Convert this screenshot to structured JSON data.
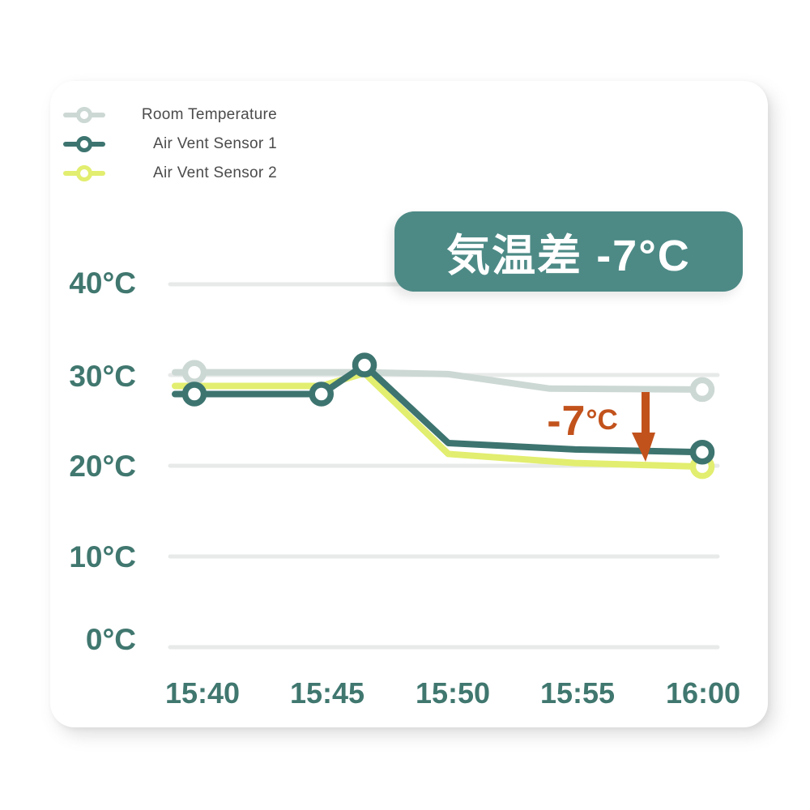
{
  "colors": {
    "room": "#ccd8d4",
    "sensor1": "#3d7470",
    "sensor2": "#e2ee6f",
    "axis_text": "#40776f",
    "grid": "#e7eae8",
    "banner_bg": "#4d8a86",
    "banner_text": "#ffffff",
    "annotation": "#c2521c",
    "card_bg": "#ffffff"
  },
  "legend": {
    "items": [
      {
        "label": "Room Temperature",
        "color": "#ccd8d4"
      },
      {
        "label": "Air Vent Sensor 1",
        "color": "#3d7470"
      },
      {
        "label": "Air Vent Sensor 2",
        "color": "#e2ee6f"
      }
    ]
  },
  "banner": {
    "text": "気温差 -7°C"
  },
  "annotation": {
    "value": "-7",
    "unit": "°C",
    "arrow": "down"
  },
  "chart_data": {
    "type": "line",
    "title": "",
    "xlabel": "",
    "ylabel": "",
    "x_ticks": [
      "15:40",
      "15:45",
      "15:50",
      "15:55",
      "16:00"
    ],
    "y_ticks": [
      "40°C",
      "30°C",
      "20°C",
      "10°C",
      "0°C"
    ],
    "y_tick_values": [
      40,
      30,
      20,
      10,
      0
    ],
    "ylim": [
      0,
      45
    ],
    "x_range_minutes_from_1540": [
      0,
      20
    ],
    "grid": "horizontal",
    "legend_position": "top-left",
    "series": [
      {
        "name": "Room Temperature",
        "color": "#ccd8d4",
        "x_minutes": [
          0,
          5,
          6.7,
          10,
          14,
          20
        ],
        "values_c": [
          30.3,
          30.3,
          30.3,
          30.1,
          28.5,
          28.4
        ],
        "marker_indices": [
          0,
          5
        ]
      },
      {
        "name": "Air Vent Sensor 2",
        "color": "#e2ee6f",
        "x_minutes": [
          0,
          5,
          6.7,
          10,
          15,
          20
        ],
        "values_c": [
          28.8,
          28.8,
          30.2,
          21.3,
          20.3,
          19.9
        ],
        "marker_indices": [
          5
        ]
      },
      {
        "name": "Air Vent Sensor 1",
        "color": "#3d7470",
        "x_minutes": [
          0,
          5,
          6.7,
          10,
          15,
          20
        ],
        "values_c": [
          27.9,
          27.9,
          31.1,
          22.5,
          21.8,
          21.5
        ],
        "marker_indices": [
          0,
          1,
          2,
          5
        ]
      }
    ]
  }
}
